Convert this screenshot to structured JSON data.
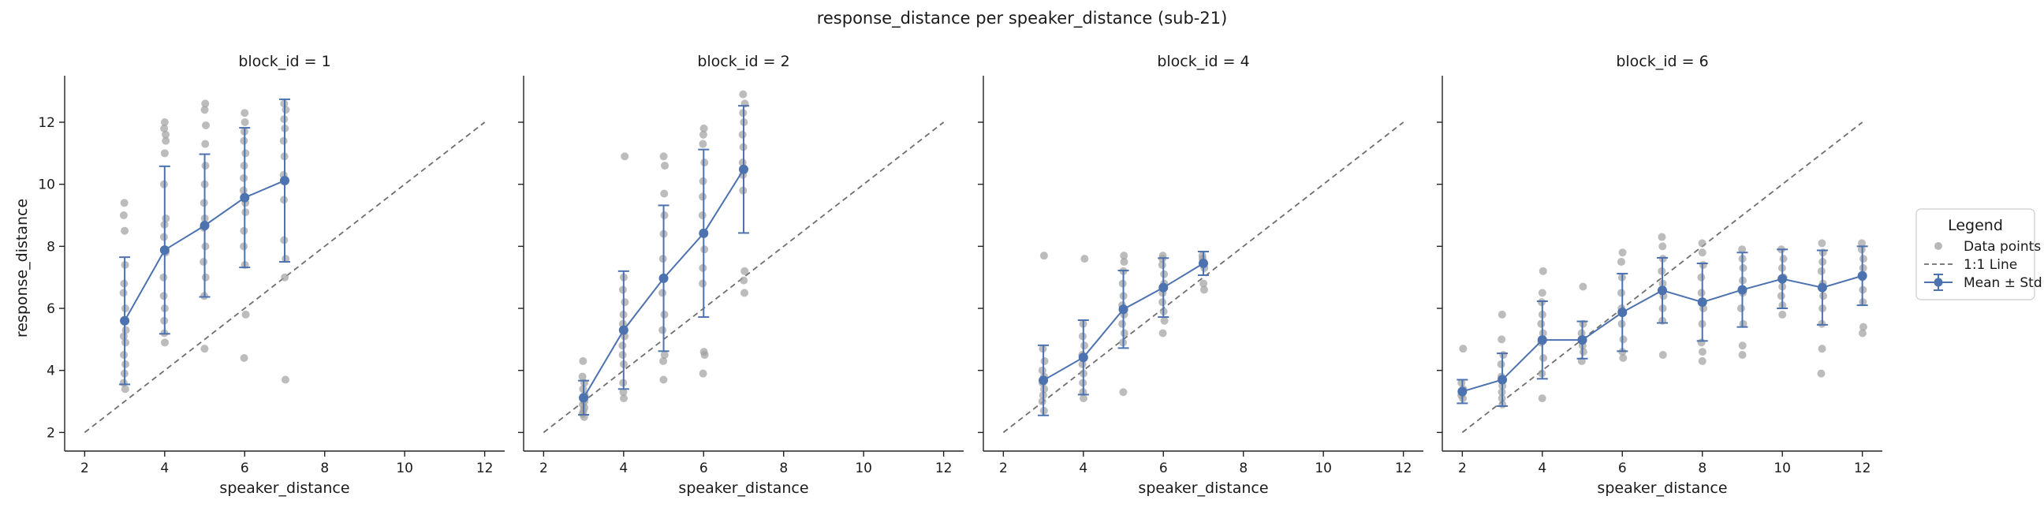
{
  "chart_data": {
    "type": "scatter",
    "title": "response_distance per speaker_distance (sub-21)",
    "xlabel": "speaker_distance",
    "ylabel": "response_distance",
    "xlim": [
      1.5,
      12.5
    ],
    "ylim": [
      1.4,
      13.5
    ],
    "xticks": [
      2,
      4,
      6,
      8,
      10,
      12
    ],
    "yticks": [
      2,
      4,
      6,
      8,
      10,
      12
    ],
    "identity_line": [
      2,
      12
    ],
    "legend": {
      "title": "Legend",
      "placement": "right",
      "entries": [
        "Data points",
        "1:1 Line",
        "Mean ± Std"
      ]
    },
    "colors": {
      "points": "#a0a0a0",
      "mean": "#4c72b0",
      "identity": "#6e6e6e"
    },
    "panels": [
      {
        "title": "block_id = 1",
        "mean": [
          {
            "x": 3,
            "y": 5.6,
            "std": 2.05
          },
          {
            "x": 4,
            "y": 7.88,
            "std": 2.7
          },
          {
            "x": 5,
            "y": 8.67,
            "std": 2.3
          },
          {
            "x": 6,
            "y": 9.57,
            "std": 2.25
          },
          {
            "x": 7,
            "y": 10.12,
            "std": 2.62
          }
        ],
        "points": [
          {
            "x": 3,
            "y": [
              3.4,
              3.6,
              3.9,
              4.2,
              4.5,
              4.9,
              5.1,
              5.3,
              5.6,
              6.0,
              6.5,
              6.8,
              7.4,
              8.5,
              9.0,
              9.4
            ]
          },
          {
            "x": 4,
            "y": [
              4.9,
              5.2,
              5.6,
              6.0,
              6.4,
              7.0,
              7.8,
              8.3,
              8.7,
              8.9,
              10.0,
              11.0,
              11.4,
              11.6,
              11.8,
              12.0
            ]
          },
          {
            "x": 5,
            "y": [
              4.7,
              6.4,
              7.0,
              7.5,
              8.0,
              8.6,
              8.9,
              9.4,
              10.0,
              10.6,
              11.3,
              11.9,
              12.4,
              12.6
            ]
          },
          {
            "x": 6,
            "y": [
              4.4,
              5.8,
              7.4,
              8.0,
              8.5,
              9.1,
              9.4,
              9.8,
              10.2,
              10.6,
              11.0,
              11.4,
              11.7,
              12.0,
              12.3
            ]
          },
          {
            "x": 7,
            "y": [
              3.7,
              7.0,
              7.6,
              8.2,
              9.5,
              10.3,
              10.9,
              11.4,
              11.8,
              12.1,
              12.4,
              12.6
            ]
          }
        ]
      },
      {
        "title": "block_id = 2",
        "mean": [
          {
            "x": 3,
            "y": 3.12,
            "std": 0.55
          },
          {
            "x": 4,
            "y": 5.3,
            "std": 1.9
          },
          {
            "x": 5,
            "y": 6.97,
            "std": 2.35
          },
          {
            "x": 6,
            "y": 8.42,
            "std": 2.7
          },
          {
            "x": 7,
            "y": 10.48,
            "std": 2.05
          }
        ],
        "points": [
          {
            "x": 3,
            "y": [
              2.5,
              2.6,
              2.7,
              2.8,
              2.9,
              3.0,
              3.1,
              3.2,
              3.4,
              3.6,
              3.8,
              4.3
            ]
          },
          {
            "x": 4,
            "y": [
              3.1,
              3.3,
              3.6,
              4.2,
              4.5,
              4.8,
              5.1,
              5.5,
              5.8,
              6.2,
              6.6,
              7.0,
              10.9
            ]
          },
          {
            "x": 5,
            "y": [
              3.7,
              4.3,
              4.5,
              5.3,
              5.8,
              6.5,
              7.0,
              7.6,
              8.4,
              9.0,
              9.7,
              10.6,
              10.9
            ]
          },
          {
            "x": 6,
            "y": [
              3.9,
              4.5,
              4.6,
              6.8,
              7.3,
              7.9,
              8.4,
              9.0,
              9.6,
              10.1,
              10.7,
              11.3,
              11.6,
              11.8
            ]
          },
          {
            "x": 7,
            "y": [
              6.5,
              6.9,
              7.2,
              9.8,
              10.3,
              10.7,
              11.2,
              11.6,
              12.0,
              12.3,
              12.6,
              12.9
            ]
          }
        ]
      },
      {
        "title": "block_id = 4",
        "mean": [
          {
            "x": 3,
            "y": 3.68,
            "std": 1.13
          },
          {
            "x": 4,
            "y": 4.42,
            "std": 1.2
          },
          {
            "x": 5,
            "y": 5.97,
            "std": 1.25
          },
          {
            "x": 6,
            "y": 6.67,
            "std": 0.95
          },
          {
            "x": 7,
            "y": 7.45,
            "std": 0.38
          }
        ],
        "points": [
          {
            "x": 3,
            "y": [
              2.7,
              3.0,
              3.2,
              3.4,
              3.6,
              3.8,
              4.0,
              4.3,
              4.7,
              7.7
            ]
          },
          {
            "x": 4,
            "y": [
              3.1,
              3.3,
              3.6,
              3.9,
              4.2,
              4.5,
              4.8,
              5.1,
              5.5,
              7.6
            ]
          },
          {
            "x": 5,
            "y": [
              3.3,
              4.9,
              5.2,
              5.5,
              5.8,
              6.1,
              6.4,
              6.8,
              7.2,
              7.5,
              7.7
            ]
          },
          {
            "x": 6,
            "y": [
              5.2,
              5.6,
              5.9,
              6.2,
              6.5,
              6.8,
              7.1,
              7.4,
              7.6,
              7.7
            ]
          },
          {
            "x": 7,
            "y": [
              6.6,
              6.8,
              7.3,
              7.5,
              7.6,
              7.7
            ]
          }
        ]
      },
      {
        "title": "block_id = 6",
        "mean": [
          {
            "x": 2,
            "y": 3.32,
            "std": 0.38
          },
          {
            "x": 3,
            "y": 3.7,
            "std": 0.85
          },
          {
            "x": 4,
            "y": 4.98,
            "std": 1.25
          },
          {
            "x": 5,
            "y": 4.98,
            "std": 0.6
          },
          {
            "x": 6,
            "y": 5.87,
            "std": 1.25
          },
          {
            "x": 7,
            "y": 6.58,
            "std": 1.05
          },
          {
            "x": 8,
            "y": 6.2,
            "std": 1.25
          },
          {
            "x": 9,
            "y": 6.6,
            "std": 1.2
          },
          {
            "x": 10,
            "y": 6.95,
            "std": 0.95
          },
          {
            "x": 11,
            "y": 6.67,
            "std": 1.2
          },
          {
            "x": 12,
            "y": 7.05,
            "std": 0.95
          }
        ],
        "points": [
          {
            "x": 2,
            "y": [
              3.1,
              3.2,
              3.3,
              3.4,
              3.6,
              4.7
            ]
          },
          {
            "x": 3,
            "y": [
              2.9,
              3.1,
              3.3,
              3.5,
              3.8,
              4.2,
              4.5,
              5.0,
              5.8
            ]
          },
          {
            "x": 4,
            "y": [
              3.1,
              3.9,
              4.4,
              4.9,
              5.2,
              5.5,
              5.8,
              6.2,
              6.5,
              7.2
            ]
          },
          {
            "x": 5,
            "y": [
              4.3,
              4.6,
              4.8,
              5.0,
              5.2,
              5.5,
              6.7
            ]
          },
          {
            "x": 6,
            "y": [
              4.4,
              4.6,
              5.0,
              5.5,
              6.0,
              6.5,
              7.0,
              7.5,
              7.8
            ]
          },
          {
            "x": 7,
            "y": [
              4.5,
              5.6,
              6.0,
              6.4,
              6.8,
              7.2,
              7.6,
              8.0,
              8.3
            ]
          },
          {
            "x": 8,
            "y": [
              4.3,
              4.6,
              4.9,
              5.5,
              6.0,
              6.5,
              7.0,
              7.4,
              7.8,
              8.1
            ]
          },
          {
            "x": 9,
            "y": [
              4.5,
              4.8,
              5.5,
              6.0,
              6.5,
              6.9,
              7.3,
              7.6,
              7.9
            ]
          },
          {
            "x": 10,
            "y": [
              5.8,
              6.1,
              6.4,
              6.7,
              7.0,
              7.3,
              7.6,
              7.9
            ]
          },
          {
            "x": 11,
            "y": [
              3.9,
              4.7,
              5.5,
              6.0,
              6.4,
              6.8,
              7.2,
              7.5,
              7.8,
              8.1
            ]
          },
          {
            "x": 12,
            "y": [
              5.2,
              5.4,
              6.2,
              6.6,
              7.0,
              7.3,
              7.6,
              7.9,
              8.1
            ]
          }
        ]
      }
    ]
  }
}
